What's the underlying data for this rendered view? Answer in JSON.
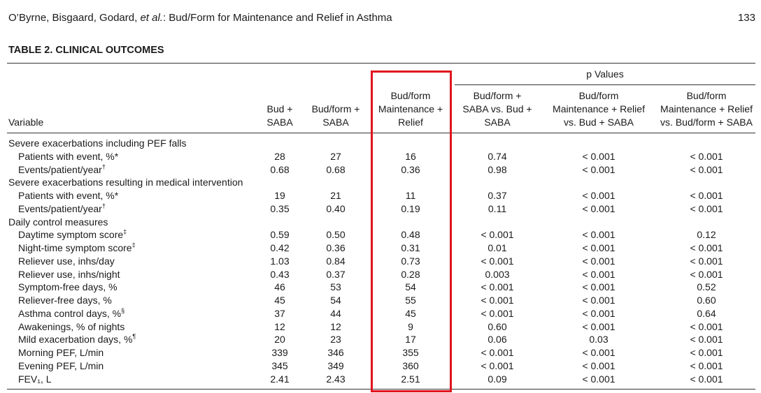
{
  "header": {
    "authors": "O’Byrne, Bisgaard, Godard,",
    "et_al": "et al.",
    "title": ": Bud/Form for Maintenance and Relief in Asthma",
    "page_number": "133"
  },
  "table": {
    "caption": "TABLE 2. CLINICAL OUTCOMES",
    "p_values_header": "p Values",
    "columns": [
      {
        "lines": [
          "Variable"
        ]
      },
      {
        "lines": [
          "Bud +",
          "SABA"
        ]
      },
      {
        "lines": [
          "Bud/form +",
          "SABA"
        ]
      },
      {
        "lines": [
          "Bud/form",
          "Maintenance +",
          "Relief"
        ]
      },
      {
        "lines": [
          "Bud/form +",
          "SABA vs. Bud +",
          "SABA"
        ]
      },
      {
        "lines": [
          "Bud/form",
          "Maintenance + Relief",
          "vs. Bud + SABA"
        ]
      },
      {
        "lines": [
          "Bud/form",
          "Maintenance + Relief",
          "vs. Bud/form + SABA"
        ]
      }
    ],
    "sections": [
      {
        "title": "Severe exacerbations including PEF falls",
        "rows": [
          {
            "label": "Patients with event, %*",
            "cells": [
              "28",
              "27",
              "16",
              "0.74",
              "< 0.001",
              "< 0.001"
            ]
          },
          {
            "label": "Events/patient/year",
            "note": "†",
            "cells": [
              "0.68",
              "0.68",
              "0.36",
              "0.98",
              "< 0.001",
              "< 0.001"
            ]
          }
        ]
      },
      {
        "title": "Severe exacerbations resulting in medical intervention",
        "rows": [
          {
            "label": "Patients with event, %*",
            "cells": [
              "19",
              "21",
              "11",
              "0.37",
              "< 0.001",
              "< 0.001"
            ]
          },
          {
            "label": "Events/patient/year",
            "note": "†",
            "cells": [
              "0.35",
              "0.40",
              "0.19",
              "0.11",
              "< 0.001",
              "< 0.001"
            ]
          }
        ]
      },
      {
        "title": "Daily control measures",
        "rows": [
          {
            "label": "Daytime symptom score",
            "note": "‡",
            "cells": [
              "0.59",
              "0.50",
              "0.48",
              "< 0.001",
              "< 0.001",
              "0.12"
            ]
          },
          {
            "label": "Night-time symptom score",
            "note": "‡",
            "cells": [
              "0.42",
              "0.36",
              "0.31",
              "0.01",
              "< 0.001",
              "< 0.001"
            ]
          },
          {
            "label": "Reliever use, inhs/day",
            "cells": [
              "1.03",
              "0.84",
              "0.73",
              "< 0.001",
              "< 0.001",
              "< 0.001"
            ]
          },
          {
            "label": "Reliever use, inhs/night",
            "cells": [
              "0.43",
              "0.37",
              "0.28",
              "0.003",
              "< 0.001",
              "< 0.001"
            ]
          },
          {
            "label": "Symptom-free days, %",
            "cells": [
              "46",
              "53",
              "54",
              "< 0.001",
              "< 0.001",
              "0.52"
            ]
          },
          {
            "label": "Reliever-free days, %",
            "cells": [
              "45",
              "54",
              "55",
              "< 0.001",
              "< 0.001",
              "0.60"
            ]
          },
          {
            "label": "Asthma control days, %",
            "note": "§",
            "cells": [
              "37",
              "44",
              "45",
              "< 0.001",
              "< 0.001",
              "0.64"
            ]
          },
          {
            "label": "Awakenings, % of nights",
            "cells": [
              "12",
              "12",
              "9",
              "0.60",
              "< 0.001",
              "< 0.001"
            ]
          },
          {
            "label": "Mild exacerbation days, %",
            "note": "¶",
            "cells": [
              "20",
              "23",
              "17",
              "0.06",
              "0.03",
              "< 0.001"
            ]
          },
          {
            "label": "Morning PEF, L/min",
            "cells": [
              "339",
              "346",
              "355",
              "< 0.001",
              "< 0.001",
              "< 0.001"
            ]
          },
          {
            "label": "Evening PEF, L/min",
            "cells": [
              "345",
              "349",
              "360",
              "< 0.001",
              "< 0.001",
              "< 0.001"
            ]
          },
          {
            "label": "FEV₁, L",
            "cells": [
              "2.41",
              "2.43",
              "2.51",
              "0.09",
              "< 0.001",
              "< 0.001"
            ]
          }
        ]
      }
    ]
  }
}
